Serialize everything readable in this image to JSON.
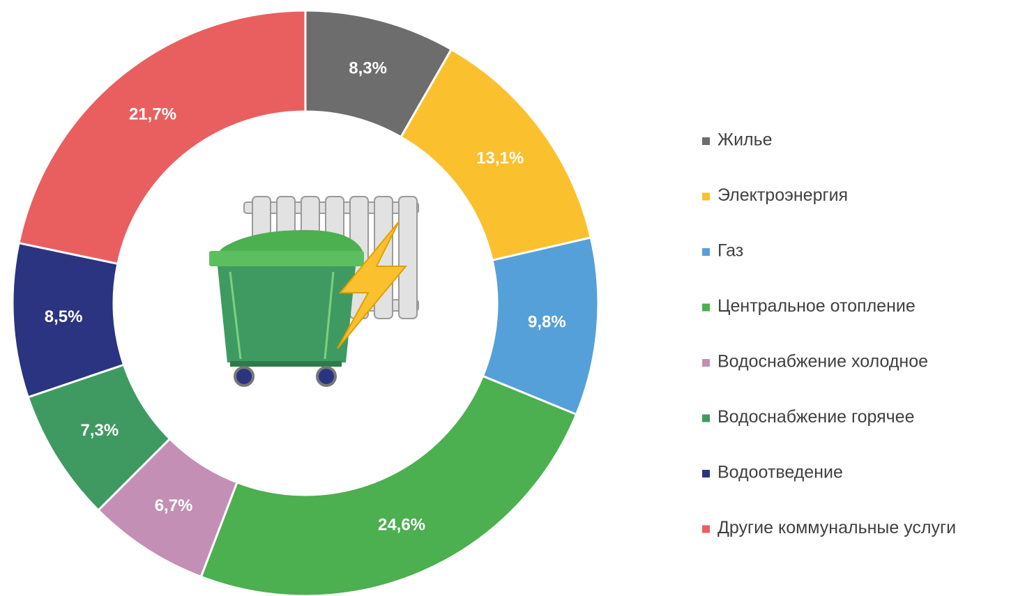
{
  "chart_data": {
    "type": "donut",
    "categories": [
      "Жилье",
      "Электроэнергия",
      "Газ",
      "Центральное отопление",
      "Водоснабжение холодное",
      "Водоснабжение горячее",
      "Водоотведение",
      "Другие коммунальные услуги"
    ],
    "values": [
      8.3,
      13.1,
      9.8,
      24.6,
      6.7,
      7.3,
      8.5,
      21.7
    ],
    "value_labels": [
      "8,3%",
      "13,1%",
      "9,8%",
      "24,6%",
      "6,7%",
      "7,3%",
      "8,5%",
      "21,7%"
    ],
    "colors": [
      "#6d6d6d",
      "#fbc02d",
      "#55a0d8",
      "#4caf50",
      "#c48fb4",
      "#3f9a62",
      "#2a3480",
      "#e95f5f"
    ],
    "legend": "right"
  }
}
